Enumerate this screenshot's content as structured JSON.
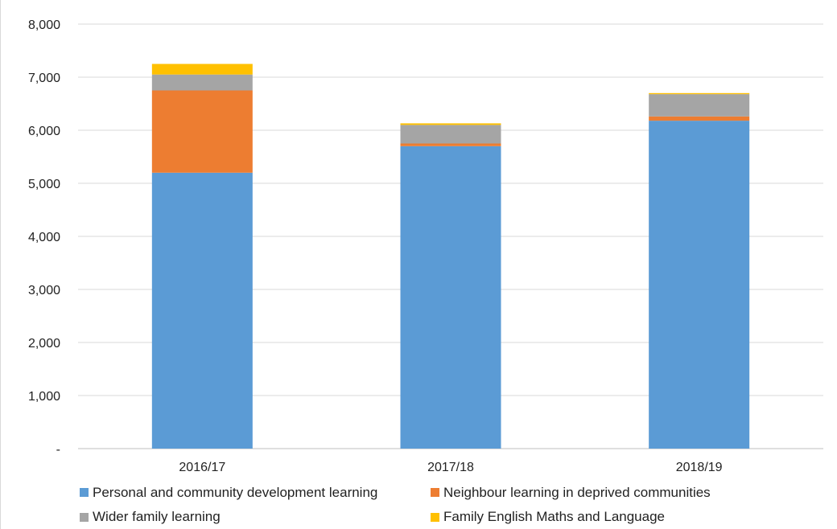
{
  "chart_data": {
    "type": "bar",
    "stacked": true,
    "categories": [
      "2016/17",
      "2017/18",
      "2018/19"
    ],
    "series": [
      {
        "name": "Personal and community development learning",
        "color": "#5b9bd5",
        "values": [
          5200,
          5700,
          6180
        ]
      },
      {
        "name": "Neighbour learning in deprived communities",
        "color": "#ed7d31",
        "values": [
          1550,
          50,
          80
        ]
      },
      {
        "name": "Wider family learning",
        "color": "#a5a5a5",
        "values": [
          300,
          350,
          420
        ]
      },
      {
        "name": "Family English Maths and Language",
        "color": "#ffc000",
        "values": [
          200,
          30,
          20
        ]
      }
    ],
    "yticks": [
      "-",
      "1,000",
      "2,000",
      "3,000",
      "4,000",
      "5,000",
      "6,000",
      "7,000",
      "8,000"
    ],
    "ylim": [
      0,
      8000
    ],
    "grid": true,
    "legend_position": "bottom",
    "title": "",
    "xlabel": "",
    "ylabel": ""
  }
}
